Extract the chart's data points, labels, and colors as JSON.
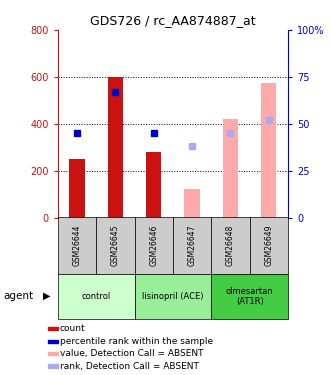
{
  "title": "GDS726 / rc_AA874887_at",
  "samples": [
    "GSM26644",
    "GSM26645",
    "GSM26646",
    "GSM26647",
    "GSM26648",
    "GSM26649"
  ],
  "groups": [
    {
      "label": "control",
      "indices": [
        0,
        1
      ],
      "color": "#ccffcc"
    },
    {
      "label": "lisinopril (ACE)",
      "indices": [
        2,
        3
      ],
      "color": "#99ee99"
    },
    {
      "label": "olmesartan\n(AT1R)",
      "indices": [
        4,
        5
      ],
      "color": "#44cc44"
    }
  ],
  "count_bars": [
    {
      "index": 0,
      "value": 250,
      "color": "#cc1111"
    },
    {
      "index": 1,
      "value": 600,
      "color": "#cc1111"
    },
    {
      "index": 2,
      "value": 280,
      "color": "#cc1111"
    }
  ],
  "rank_markers": [
    {
      "index": 0,
      "value": 45,
      "color": "#0000cc"
    },
    {
      "index": 1,
      "value": 67,
      "color": "#0000cc"
    },
    {
      "index": 2,
      "value": 45,
      "color": "#0000cc"
    }
  ],
  "absent_value_bars": [
    {
      "index": 3,
      "value": 120,
      "color": "#ffaaaa"
    },
    {
      "index": 4,
      "value": 420,
      "color": "#ffaaaa"
    },
    {
      "index": 5,
      "value": 575,
      "color": "#ffaaaa"
    }
  ],
  "absent_rank_markers": [
    {
      "index": 3,
      "value": 38,
      "color": "#aaaaee"
    },
    {
      "index": 4,
      "value": 45,
      "color": "#aaaaee"
    },
    {
      "index": 5,
      "value": 52,
      "color": "#aaaaee"
    }
  ],
  "ylim_left": [
    0,
    800
  ],
  "ylim_right": [
    0,
    100
  ],
  "left_ticks": [
    0,
    200,
    400,
    600,
    800
  ],
  "right_ticks": [
    0,
    25,
    50,
    75,
    100
  ],
  "left_tick_labels": [
    "0",
    "200",
    "400",
    "600",
    "800"
  ],
  "right_tick_labels": [
    "0",
    "25",
    "50",
    "75",
    "100%"
  ],
  "left_color": "#cc1111",
  "right_color": "#0000cc",
  "bar_width": 0.4,
  "marker_size": 2.5,
  "legend_items": [
    {
      "color": "#cc1111",
      "label": "count"
    },
    {
      "color": "#0000cc",
      "label": "percentile rank within the sample"
    },
    {
      "color": "#ffaaaa",
      "label": "value, Detection Call = ABSENT"
    },
    {
      "color": "#aaaaee",
      "label": "rank, Detection Call = ABSENT"
    }
  ]
}
